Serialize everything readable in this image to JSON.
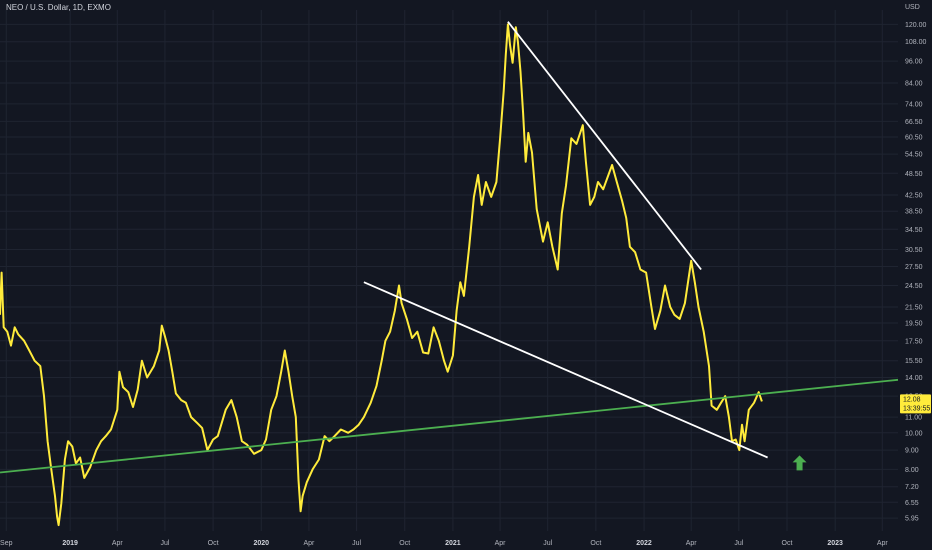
{
  "header": {
    "title": "NEO / U.S. Dollar, 1D, EXMO"
  },
  "axis": {
    "currency": "USD"
  },
  "last_price": {
    "value": "12.08",
    "countdown": "13:39:55"
  },
  "colors": {
    "background": "#131722",
    "price": "#ffeb3b",
    "support": "#4caf50",
    "trendline": "#ffffff",
    "arrow": "#4caf50"
  },
  "chart_data": {
    "type": "line",
    "title": "NEO / U.S. Dollar, 1D, EXMO",
    "y_scale": "log",
    "ylim": [
      5.5,
      131
    ],
    "y_ticks": [
      5.95,
      6.55,
      7.2,
      8.0,
      9.0,
      10.0,
      11.0,
      12.5,
      14.0,
      15.5,
      17.5,
      19.5,
      21.5,
      24.5,
      27.5,
      30.5,
      34.5,
      38.5,
      42.5,
      48.5,
      54.5,
      60.5,
      66.5,
      74.0,
      84.0,
      96.0,
      108.0,
      120.0
    ],
    "y_tick_labels": [
      "5.95",
      "6.55",
      "7.20",
      "8.00",
      "9.00",
      "10.00",
      "11.00",
      "12.50",
      "14.00",
      "15.50",
      "17.50",
      "19.50",
      "21.50",
      "24.50",
      "27.50",
      "30.50",
      "34.50",
      "38.50",
      "42.50",
      "48.50",
      "54.50",
      "60.50",
      "66.50",
      "74.00",
      "84.00",
      "96.00",
      "108.00",
      "120.00"
    ],
    "x_range": [
      "2018-08-20",
      "2023-05-01"
    ],
    "x_ticks": [
      {
        "date": "2018-09-01",
        "label": "Sep",
        "year": false
      },
      {
        "date": "2019-01-01",
        "label": "2019",
        "year": true
      },
      {
        "date": "2019-04-01",
        "label": "Apr",
        "year": false
      },
      {
        "date": "2019-07-01",
        "label": "Jul",
        "year": false
      },
      {
        "date": "2019-10-01",
        "label": "Oct",
        "year": false
      },
      {
        "date": "2020-01-01",
        "label": "2020",
        "year": true
      },
      {
        "date": "2020-04-01",
        "label": "Apr",
        "year": false
      },
      {
        "date": "2020-07-01",
        "label": "Jul",
        "year": false
      },
      {
        "date": "2020-10-01",
        "label": "Oct",
        "year": false
      },
      {
        "date": "2021-01-01",
        "label": "2021",
        "year": true
      },
      {
        "date": "2021-04-01",
        "label": "Apr",
        "year": false
      },
      {
        "date": "2021-07-01",
        "label": "Jul",
        "year": false
      },
      {
        "date": "2021-10-01",
        "label": "Oct",
        "year": false
      },
      {
        "date": "2022-01-01",
        "label": "2022",
        "year": true
      },
      {
        "date": "2022-04-01",
        "label": "Apr",
        "year": false
      },
      {
        "date": "2022-07-01",
        "label": "Jul",
        "year": false
      },
      {
        "date": "2022-10-01",
        "label": "Oct",
        "year": false
      },
      {
        "date": "2023-01-01",
        "label": "2023",
        "year": true
      },
      {
        "date": "2023-04-01",
        "label": "Apr",
        "year": false
      }
    ],
    "grid": true,
    "series": [
      {
        "color": "#ffeb3b",
        "points": [
          [
            "2018-08-20",
            20.5
          ],
          [
            "2018-08-23",
            26.5
          ],
          [
            "2018-08-27",
            19.0
          ],
          [
            "2018-09-03",
            18.5
          ],
          [
            "2018-09-10",
            17.0
          ],
          [
            "2018-09-17",
            19.0
          ],
          [
            "2018-09-24",
            18.2
          ],
          [
            "2018-10-05",
            17.5
          ],
          [
            "2018-10-15",
            16.5
          ],
          [
            "2018-10-25",
            15.5
          ],
          [
            "2018-11-05",
            15.0
          ],
          [
            "2018-11-12",
            12.5
          ],
          [
            "2018-11-19",
            9.5
          ],
          [
            "2018-11-26",
            8.0
          ],
          [
            "2018-12-03",
            6.8
          ],
          [
            "2018-12-07",
            6.0
          ],
          [
            "2018-12-10",
            5.7
          ],
          [
            "2018-12-15",
            6.5
          ],
          [
            "2018-12-22",
            8.5
          ],
          [
            "2018-12-28",
            9.5
          ],
          [
            "2019-01-05",
            9.2
          ],
          [
            "2019-01-12",
            8.3
          ],
          [
            "2019-01-20",
            8.6
          ],
          [
            "2019-01-28",
            7.6
          ],
          [
            "2019-02-08",
            8.1
          ],
          [
            "2019-02-20",
            9.0
          ],
          [
            "2019-03-01",
            9.5
          ],
          [
            "2019-03-10",
            9.8
          ],
          [
            "2019-03-20",
            10.2
          ],
          [
            "2019-04-01",
            11.5
          ],
          [
            "2019-04-05",
            14.5
          ],
          [
            "2019-04-12",
            13.2
          ],
          [
            "2019-04-22",
            12.8
          ],
          [
            "2019-05-01",
            11.7
          ],
          [
            "2019-05-10",
            13.0
          ],
          [
            "2019-05-18",
            15.5
          ],
          [
            "2019-05-28",
            14.0
          ],
          [
            "2019-06-10",
            15.0
          ],
          [
            "2019-06-20",
            16.5
          ],
          [
            "2019-06-25",
            19.2
          ],
          [
            "2019-07-01",
            18.0
          ],
          [
            "2019-07-08",
            16.5
          ],
          [
            "2019-07-15",
            14.5
          ],
          [
            "2019-07-22",
            12.7
          ],
          [
            "2019-08-01",
            12.2
          ],
          [
            "2019-08-10",
            12.0
          ],
          [
            "2019-08-20",
            11.0
          ],
          [
            "2019-09-01",
            10.6
          ],
          [
            "2019-09-10",
            10.3
          ],
          [
            "2019-09-20",
            9.0
          ],
          [
            "2019-10-01",
            9.6
          ],
          [
            "2019-10-10",
            9.8
          ],
          [
            "2019-10-25",
            11.5
          ],
          [
            "2019-11-05",
            12.2
          ],
          [
            "2019-11-15",
            11.0
          ],
          [
            "2019-11-25",
            9.5
          ],
          [
            "2019-12-05",
            9.3
          ],
          [
            "2019-12-18",
            8.8
          ],
          [
            "2020-01-01",
            9.0
          ],
          [
            "2020-01-10",
            9.6
          ],
          [
            "2020-01-20",
            11.5
          ],
          [
            "2020-01-30",
            12.5
          ],
          [
            "2020-02-08",
            14.5
          ],
          [
            "2020-02-15",
            16.5
          ],
          [
            "2020-02-22",
            14.5
          ],
          [
            "2020-02-29",
            12.5
          ],
          [
            "2020-03-07",
            11.0
          ],
          [
            "2020-03-12",
            7.5
          ],
          [
            "2020-03-16",
            6.2
          ],
          [
            "2020-03-20",
            6.8
          ],
          [
            "2020-03-28",
            7.4
          ],
          [
            "2020-04-08",
            8.0
          ],
          [
            "2020-04-20",
            8.5
          ],
          [
            "2020-05-01",
            9.8
          ],
          [
            "2020-05-10",
            9.5
          ],
          [
            "2020-05-20",
            9.8
          ],
          [
            "2020-06-01",
            10.2
          ],
          [
            "2020-06-15",
            10.0
          ],
          [
            "2020-06-25",
            10.2
          ],
          [
            "2020-07-05",
            10.5
          ],
          [
            "2020-07-15",
            11.0
          ],
          [
            "2020-07-28",
            12.0
          ],
          [
            "2020-08-08",
            13.3
          ],
          [
            "2020-08-18",
            15.5
          ],
          [
            "2020-08-25",
            17.5
          ],
          [
            "2020-09-03",
            18.5
          ],
          [
            "2020-09-12",
            21.0
          ],
          [
            "2020-09-20",
            24.5
          ],
          [
            "2020-09-25",
            22.0
          ],
          [
            "2020-10-05",
            20.0
          ],
          [
            "2020-10-15",
            17.8
          ],
          [
            "2020-10-25",
            18.5
          ],
          [
            "2020-11-05",
            16.3
          ],
          [
            "2020-11-15",
            16.2
          ],
          [
            "2020-11-25",
            19.0
          ],
          [
            "2020-12-05",
            17.5
          ],
          [
            "2020-12-15",
            15.5
          ],
          [
            "2020-12-22",
            14.5
          ],
          [
            "2021-01-01",
            16.0
          ],
          [
            "2021-01-08",
            21.0
          ],
          [
            "2021-01-15",
            25.0
          ],
          [
            "2021-01-22",
            23.0
          ],
          [
            "2021-02-01",
            31.0
          ],
          [
            "2021-02-10",
            42.0
          ],
          [
            "2021-02-18",
            48.0
          ],
          [
            "2021-02-25",
            40.0
          ],
          [
            "2021-03-05",
            46.0
          ],
          [
            "2021-03-15",
            42.0
          ],
          [
            "2021-03-25",
            46.0
          ],
          [
            "2021-04-01",
            60.0
          ],
          [
            "2021-04-08",
            80.0
          ],
          [
            "2021-04-12",
            100.0
          ],
          [
            "2021-04-16",
            120.0
          ],
          [
            "2021-04-20",
            106.0
          ],
          [
            "2021-04-25",
            95.0
          ],
          [
            "2021-05-01",
            118.0
          ],
          [
            "2021-05-05",
            108.0
          ],
          [
            "2021-05-10",
            90.0
          ],
          [
            "2021-05-15",
            70.0
          ],
          [
            "2021-05-20",
            52.0
          ],
          [
            "2021-05-25",
            62.0
          ],
          [
            "2021-06-01",
            55.0
          ],
          [
            "2021-06-10",
            39.0
          ],
          [
            "2021-06-22",
            32.0
          ],
          [
            "2021-07-01",
            36.0
          ],
          [
            "2021-07-10",
            31.0
          ],
          [
            "2021-07-20",
            27.0
          ],
          [
            "2021-07-28",
            38.0
          ],
          [
            "2021-08-05",
            45.0
          ],
          [
            "2021-08-15",
            60.0
          ],
          [
            "2021-08-25",
            58.0
          ],
          [
            "2021-09-06",
            65.0
          ],
          [
            "2021-09-12",
            52.0
          ],
          [
            "2021-09-20",
            40.0
          ],
          [
            "2021-09-28",
            42.0
          ],
          [
            "2021-10-05",
            46.0
          ],
          [
            "2021-10-15",
            44.0
          ],
          [
            "2021-10-25",
            48.0
          ],
          [
            "2021-11-01",
            51.0
          ],
          [
            "2021-11-10",
            46.0
          ],
          [
            "2021-11-20",
            41.0
          ],
          [
            "2021-11-28",
            37.0
          ],
          [
            "2021-12-05",
            31.0
          ],
          [
            "2021-12-15",
            30.0
          ],
          [
            "2021-12-25",
            27.0
          ],
          [
            "2022-01-05",
            26.5
          ],
          [
            "2022-01-15",
            21.5
          ],
          [
            "2022-01-22",
            18.8
          ],
          [
            "2022-02-01",
            21.0
          ],
          [
            "2022-02-10",
            24.5
          ],
          [
            "2022-02-20",
            21.5
          ],
          [
            "2022-02-28",
            20.5
          ],
          [
            "2022-03-10",
            20.0
          ],
          [
            "2022-03-20",
            22.0
          ],
          [
            "2022-04-01",
            28.5
          ],
          [
            "2022-04-08",
            25.0
          ],
          [
            "2022-04-15",
            21.5
          ],
          [
            "2022-04-25",
            18.5
          ],
          [
            "2022-05-05",
            15.0
          ],
          [
            "2022-05-10",
            11.8
          ],
          [
            "2022-05-20",
            11.5
          ],
          [
            "2022-05-28",
            12.0
          ],
          [
            "2022-06-05",
            12.5
          ],
          [
            "2022-06-12",
            11.0
          ],
          [
            "2022-06-18",
            9.5
          ],
          [
            "2022-06-25",
            9.6
          ],
          [
            "2022-07-02",
            9.0
          ],
          [
            "2022-07-07",
            10.5
          ],
          [
            "2022-07-12",
            9.5
          ],
          [
            "2022-07-20",
            11.5
          ],
          [
            "2022-07-30",
            12.0
          ],
          [
            "2022-08-08",
            12.8
          ],
          [
            "2022-08-14",
            12.1
          ]
        ]
      },
      {
        "color": "#4caf50",
        "points": [
          [
            "2018-08-20",
            7.85
          ],
          [
            "2023-05-01",
            13.8
          ]
        ]
      },
      {
        "color": "#ffffff",
        "points": [
          [
            "2021-04-16",
            122.0
          ],
          [
            "2022-04-20",
            27.0
          ]
        ]
      },
      {
        "color": "#ffffff",
        "points": [
          [
            "2020-07-15",
            25.0
          ],
          [
            "2022-08-25",
            8.6
          ]
        ]
      }
    ],
    "annotations": [
      {
        "type": "arrow",
        "direction": "up",
        "color": "#4caf50",
        "date": "2022-10-25",
        "value": 8.3
      }
    ]
  }
}
